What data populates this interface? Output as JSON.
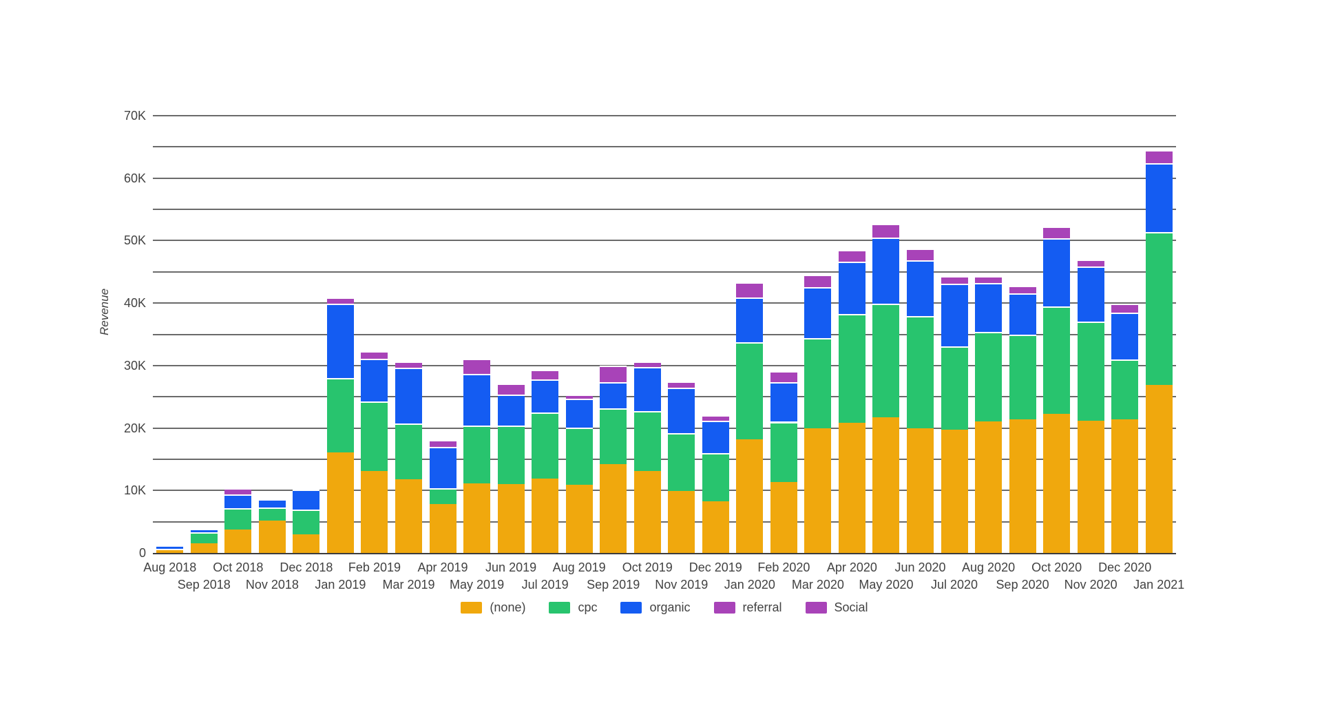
{
  "page": {
    "background": "#ffffff"
  },
  "chart_data": {
    "type": "bar",
    "stacked": true,
    "title": "",
    "xlabel": "",
    "ylabel": "Revenue",
    "ylim": [
      0,
      70000
    ],
    "grid": true,
    "gridline_interval": 5000,
    "labeled_tick_interval": 10000,
    "y_tick_labels": [
      "0",
      "10K",
      "20K",
      "30K",
      "40K",
      "50K",
      "60K",
      "70K"
    ],
    "legend_position": "bottom",
    "grid_color": "#6a6a6a",
    "axis_color": "#3c3c3c",
    "text_color": "#424242",
    "categories": [
      "Aug 2018",
      "Sep 2018",
      "Oct 2018",
      "Nov 2018",
      "Dec 2018",
      "Jan 2019",
      "Feb 2019",
      "Mar 2019",
      "Apr 2019",
      "May 2019",
      "Jun 2019",
      "Jul 2019",
      "Aug 2019",
      "Sep 2019",
      "Oct 2019",
      "Nov 2019",
      "Dec 2019",
      "Jan 2020",
      "Feb 2020",
      "Mar 2020",
      "Apr 2020",
      "May 2020",
      "Jun 2020",
      "Jul 2020",
      "Aug 2020",
      "Sep 2020",
      "Oct 2020",
      "Nov 2020",
      "Dec 2020",
      "Jan 2021"
    ],
    "series": [
      {
        "name": "(none)",
        "color": "#F0A80D",
        "values": [
          400,
          1500,
          3800,
          5200,
          3000,
          16100,
          13100,
          11800,
          7800,
          11100,
          11000,
          11900,
          10900,
          14200,
          13100,
          9900,
          8300,
          18200,
          11300,
          19900,
          20800,
          21700,
          19900,
          19700,
          21000,
          21400,
          22300,
          21200,
          21400,
          26900
        ]
      },
      {
        "name": "cpc",
        "color": "#28C46E",
        "values": [
          250,
          1800,
          3400,
          2100,
          3900,
          11900,
          11200,
          8900,
          2600,
          9300,
          9400,
          10600,
          9200,
          8900,
          9600,
          9300,
          7700,
          15500,
          9700,
          14500,
          17500,
          18200,
          18000,
          13400,
          14400,
          13500,
          17200,
          15800,
          9600,
          24500
        ]
      },
      {
        "name": "organic",
        "color": "#145CF2",
        "values": [
          600,
          550,
          2200,
          1300,
          3200,
          11900,
          6800,
          9000,
          6600,
          8300,
          5000,
          5300,
          4600,
          4200,
          7100,
          7300,
          5200,
          7200,
          6300,
          8100,
          8300,
          10600,
          9000,
          10000,
          7800,
          6700,
          10900,
          8900,
          7500,
          11000
        ]
      },
      {
        "name": "referral",
        "color": "#A843B8",
        "values": [
          0,
          0,
          1000,
          200,
          300,
          1000,
          1200,
          900,
          1100,
          2400,
          1700,
          1500,
          700,
          2700,
          800,
          900,
          900,
          2400,
          1800,
          2000,
          1900,
          2200,
          1800,
          1200,
          1100,
          1200,
          1800,
          1100,
          1400,
          2100
        ]
      },
      {
        "name": "Social",
        "color": "#A843B8",
        "values": [
          0,
          0,
          0,
          0,
          0,
          0,
          0,
          0,
          0,
          0,
          0,
          0,
          0,
          0,
          0,
          0,
          0,
          0,
          0,
          0,
          0,
          0,
          0,
          0,
          0,
          0,
          0,
          0,
          0,
          0
        ]
      }
    ]
  }
}
